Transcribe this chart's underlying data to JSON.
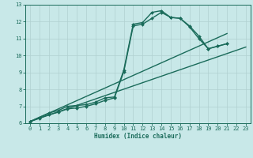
{
  "xlabel": "Humidex (Indice chaleur)",
  "xlim": [
    -0.5,
    23.5
  ],
  "ylim": [
    6,
    13
  ],
  "xticks": [
    0,
    1,
    2,
    3,
    4,
    5,
    6,
    7,
    8,
    9,
    10,
    11,
    12,
    13,
    14,
    15,
    16,
    17,
    18,
    19,
    20,
    21,
    22,
    23
  ],
  "yticks": [
    6,
    7,
    8,
    9,
    10,
    11,
    12,
    13
  ],
  "bg_color": "#c8e8e8",
  "line_color": "#1a6b5a",
  "grid_color": "#b0d0d0",
  "lines": [
    {
      "x": [
        0,
        1,
        2,
        3,
        4,
        5,
        6,
        7,
        8,
        9,
        10,
        11,
        12,
        13,
        14,
        15,
        16,
        17,
        18,
        19,
        20,
        21
      ],
      "y": [
        6.1,
        6.35,
        6.6,
        6.75,
        7.0,
        7.05,
        7.1,
        7.25,
        7.5,
        7.55,
        9.15,
        11.85,
        11.95,
        12.55,
        12.65,
        12.25,
        12.2,
        11.75,
        11.15,
        10.4,
        10.55,
        10.7
      ],
      "marker": "D",
      "markersize": 2.0,
      "linewidth": 1.0
    },
    {
      "x": [
        0,
        1,
        2,
        3,
        4,
        5,
        6,
        7,
        8,
        9,
        10,
        11,
        12,
        13,
        14,
        15,
        16,
        17,
        18,
        19,
        20,
        21
      ],
      "y": [
        6.1,
        6.3,
        6.5,
        6.65,
        6.85,
        6.9,
        7.0,
        7.15,
        7.35,
        7.5,
        9.05,
        11.75,
        11.85,
        12.2,
        12.55,
        12.25,
        12.2,
        11.7,
        11.0,
        10.4,
        10.55,
        10.7
      ],
      "marker": "D",
      "markersize": 2.0,
      "linewidth": 1.0
    },
    {
      "x": [
        0,
        21
      ],
      "y": [
        6.1,
        11.3
      ],
      "marker": null,
      "markersize": 0,
      "linewidth": 1.0
    },
    {
      "x": [
        0,
        23
      ],
      "y": [
        6.1,
        10.5
      ],
      "marker": null,
      "markersize": 0,
      "linewidth": 1.0
    }
  ]
}
